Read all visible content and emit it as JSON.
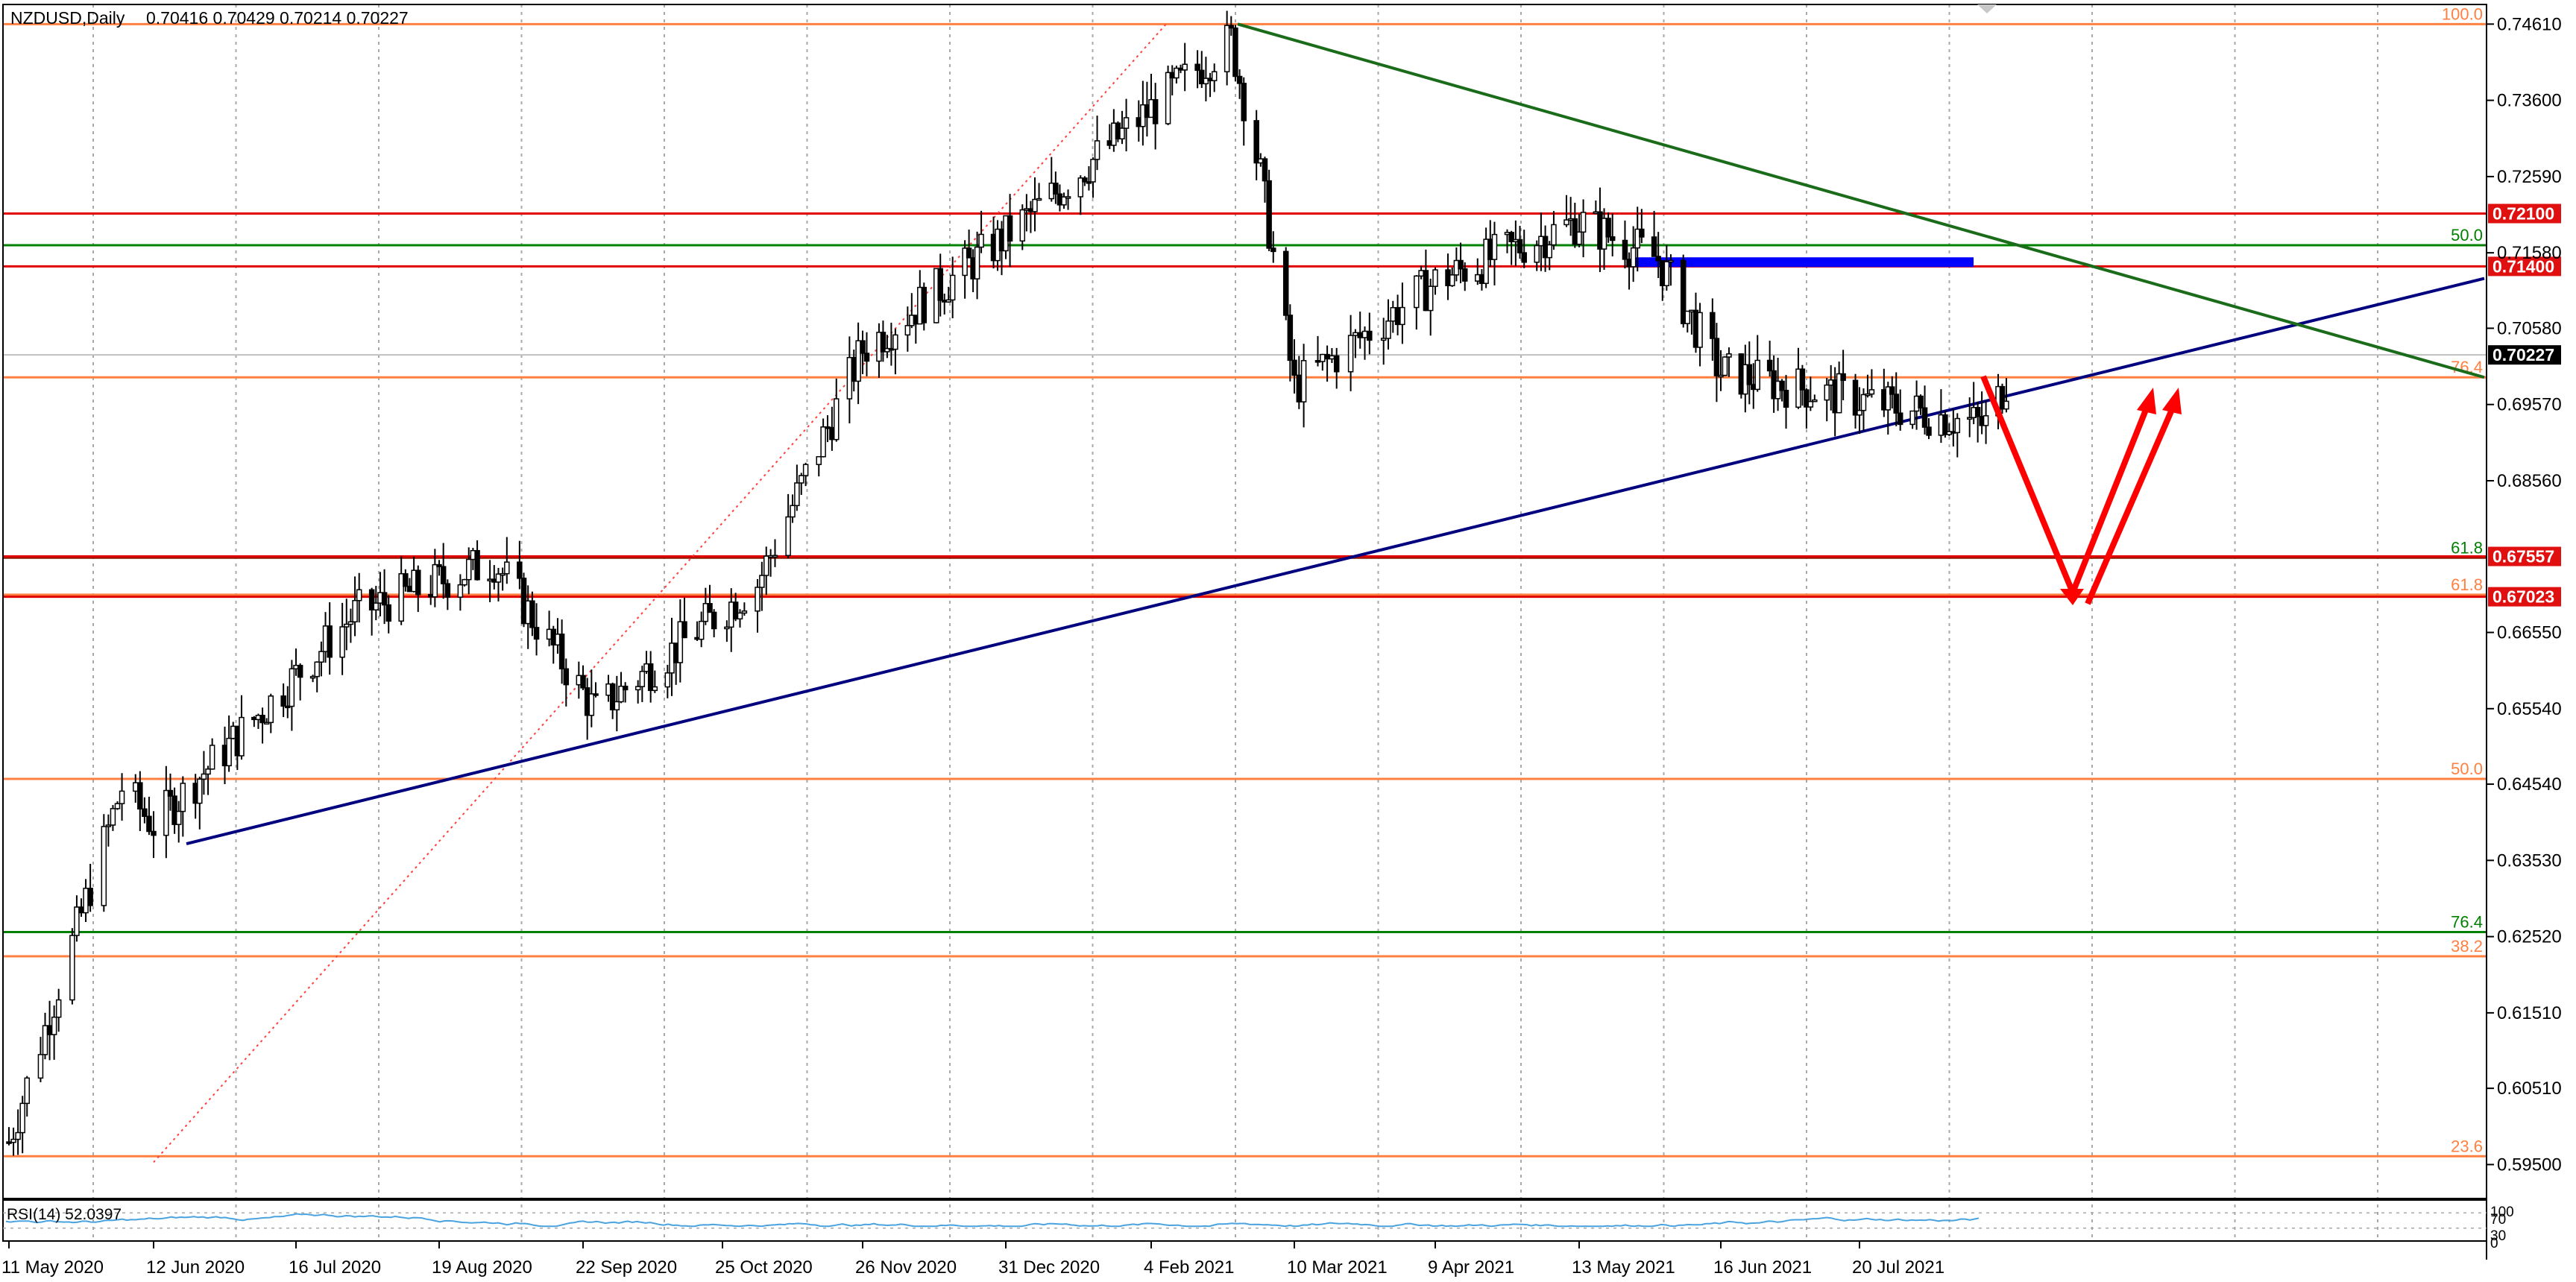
{
  "header": {
    "symbol": "NZDUSD,Daily",
    "ohlc": "0.70416 0.70429 0.70214 0.70227"
  },
  "rsi": {
    "label": "RSI(14) 52.0397",
    "scale_top": "100",
    "scale_mid": "70",
    "scale_low": "30",
    "scale_bottom": "0"
  },
  "colors": {
    "background": "#ffffff",
    "grid": "#a8a8a8",
    "candle_bull": "#ffffff",
    "candle_bear": "#000000",
    "candle_outline": "#000000",
    "fibo_line": "#ff8040",
    "fibo_text": "#ff8040",
    "green_level": "#008000",
    "red_level": "#e00000",
    "trend_down": "#1a6b1a",
    "trend_up": "#00007f",
    "blue_zone": "#0000ff",
    "arrow": "#ff0000",
    "price_tag": "#e01010",
    "current_tag": "#000000",
    "rsi_line": "#4aa3df",
    "diag_dotted": "#ff4040"
  },
  "chart_data": {
    "type": "candlestick",
    "title": "NZDUSD,Daily",
    "x_ticks": [
      "11 May 2020",
      "12 Jun 2020",
      "16 Jul 2020",
      "19 Aug 2020",
      "22 Sep 2020",
      "25 Oct 2020",
      "26 Nov 2020",
      "31 Dec 2020",
      "4 Feb 2021",
      "10 Mar 2021",
      "9 Apr 2021",
      "13 May 2021",
      "16 Jun 2021",
      "20 Jul 2021"
    ],
    "y_ticks": [
      0.7461,
      0.736,
      0.7259,
      0.7158,
      0.7058,
      0.6957,
      0.6856,
      0.6655,
      0.6554,
      0.6454,
      0.6353,
      0.6252,
      0.6151,
      0.6051,
      0.595
    ],
    "y_tick_labels": [
      "0.74610",
      "0.73600",
      "0.72590",
      "0.71580",
      "0.70580",
      "0.69570",
      "0.68560",
      "0.66550",
      "0.65540",
      "0.64540",
      "0.63530",
      "0.62520",
      "0.61510",
      "0.60510",
      "0.59500"
    ],
    "ylim": [
      0.5905,
      0.7487
    ],
    "horizontal_levels": [
      {
        "price": 0.7461,
        "kind": "fibo",
        "label": "100.0"
      },
      {
        "price": 0.7168,
        "kind": "green",
        "label": "50.0"
      },
      {
        "price": 0.6993,
        "kind": "fibo",
        "label": "76.4"
      },
      {
        "price": 0.6754,
        "kind": "dark",
        "label": "61.8"
      },
      {
        "price": 0.6705,
        "kind": "fibo",
        "label": "61.8"
      },
      {
        "price": 0.6461,
        "kind": "fibo",
        "label": "50.0"
      },
      {
        "price": 0.6258,
        "kind": "green",
        "label": "76.4"
      },
      {
        "price": 0.6226,
        "kind": "fibo",
        "label": "38.2"
      },
      {
        "price": 0.5961,
        "kind": "fibo",
        "label": "23.6"
      }
    ],
    "red_levels": [
      {
        "price": 0.721,
        "label": "0.72100"
      },
      {
        "price": 0.714,
        "label": "0.71400"
      },
      {
        "price": 0.67557,
        "label": "0.67557"
      },
      {
        "price": 0.67023,
        "label": "0.67023"
      }
    ],
    "current_price": {
      "price": 0.70227,
      "label": "0.70227"
    },
    "candle_summary": {
      "series": "NZDUSD daily closes (approx.)",
      "anchor_dates": [
        "11 May 2020",
        "5 Jun 2020",
        "12 Jun 2020",
        "30 Jul 2020",
        "1 Sep 2020",
        "25 Sep 2020",
        "2 Nov 2020",
        "26 Nov 2020",
        "31 Dec 2020",
        "23 Feb 2021",
        "2 Mar 2021",
        "10 Mar 2021",
        "9 Apr 2021",
        "13 May 2021",
        "1 Jun 2021",
        "16 Jun 2021",
        "20 Aug 2021",
        "28 Aug 2021"
      ],
      "anchor_prices": [
        0.598,
        0.645,
        0.64,
        0.668,
        0.675,
        0.655,
        0.672,
        0.703,
        0.718,
        0.744,
        0.726,
        0.698,
        0.712,
        0.72,
        0.715,
        0.7,
        0.693,
        0.7023
      ]
    },
    "rsi_value": 52.0397
  }
}
